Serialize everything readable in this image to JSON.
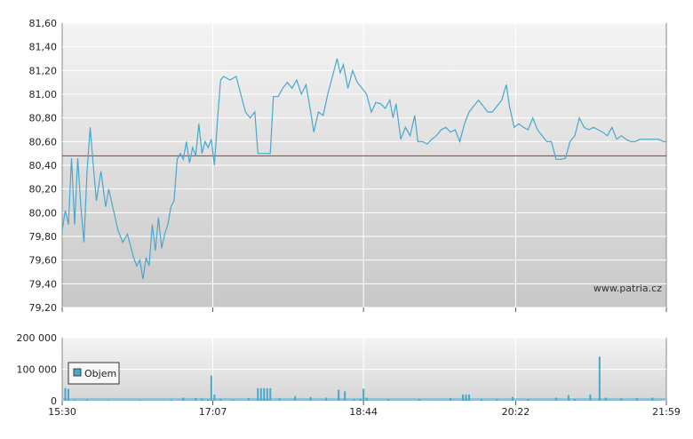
{
  "watermark": "www.patria.cz",
  "chart_data": [
    {
      "type": "line",
      "x_ticks": [
        "15:30",
        "17:07",
        "18:44",
        "20:22",
        "21:59"
      ],
      "y_ticks": [
        "79,20",
        "79,40",
        "79,60",
        "79,80",
        "80,00",
        "80,20",
        "80,40",
        "80,60",
        "80,80",
        "81,00",
        "81,20",
        "81,40",
        "81,60"
      ],
      "ylim": [
        79.2,
        81.6
      ],
      "reference_line": 80.48,
      "colors": {
        "line": "#4aa7cc",
        "reference": "#cc2222"
      },
      "series": [
        {
          "points": [
            [
              "15:30",
              79.85
            ],
            [
              "15:32",
              80.02
            ],
            [
              "15:34",
              79.9
            ],
            [
              "15:36",
              80.46
            ],
            [
              "15:38",
              79.9
            ],
            [
              "15:40",
              80.46
            ],
            [
              "15:42",
              80.05
            ],
            [
              "15:44",
              79.75
            ],
            [
              "15:46",
              80.35
            ],
            [
              "15:48",
              80.72
            ],
            [
              "15:50",
              80.4
            ],
            [
              "15:52",
              80.1
            ],
            [
              "15:55",
              80.35
            ],
            [
              "15:58",
              80.05
            ],
            [
              "16:00",
              80.2
            ],
            [
              "16:03",
              80.02
            ],
            [
              "16:06",
              79.85
            ],
            [
              "16:09",
              79.75
            ],
            [
              "16:12",
              79.82
            ],
            [
              "16:14",
              79.72
            ],
            [
              "16:16",
              79.62
            ],
            [
              "16:18",
              79.55
            ],
            [
              "16:20",
              79.6
            ],
            [
              "16:22",
              79.44
            ],
            [
              "16:24",
              79.62
            ],
            [
              "16:26",
              79.55
            ],
            [
              "16:28",
              79.9
            ],
            [
              "16:30",
              79.68
            ],
            [
              "16:32",
              79.96
            ],
            [
              "16:34",
              79.7
            ],
            [
              "16:36",
              79.82
            ],
            [
              "16:38",
              79.9
            ],
            [
              "16:40",
              80.05
            ],
            [
              "16:42",
              80.1
            ],
            [
              "16:44",
              80.45
            ],
            [
              "16:46",
              80.5
            ],
            [
              "16:48",
              80.45
            ],
            [
              "16:50",
              80.6
            ],
            [
              "16:52",
              80.42
            ],
            [
              "16:54",
              80.55
            ],
            [
              "16:56",
              80.48
            ],
            [
              "16:58",
              80.75
            ],
            [
              "17:00",
              80.5
            ],
            [
              "17:02",
              80.6
            ],
            [
              "17:04",
              80.55
            ],
            [
              "17:06",
              80.62
            ],
            [
              "17:08",
              80.4
            ],
            [
              "17:10",
              80.78
            ],
            [
              "17:12",
              81.12
            ],
            [
              "17:14",
              81.15
            ],
            [
              "17:18",
              81.12
            ],
            [
              "17:22",
              81.15
            ],
            [
              "17:25",
              81.0
            ],
            [
              "17:28",
              80.85
            ],
            [
              "17:31",
              80.8
            ],
            [
              "17:34",
              80.85
            ],
            [
              "17:36",
              80.5
            ],
            [
              "17:40",
              80.5
            ],
            [
              "17:44",
              80.5
            ],
            [
              "17:46",
              80.98
            ],
            [
              "17:49",
              80.98
            ],
            [
              "17:52",
              81.05
            ],
            [
              "17:55",
              81.1
            ],
            [
              "17:58",
              81.05
            ],
            [
              "18:01",
              81.12
            ],
            [
              "18:04",
              81.0
            ],
            [
              "18:07",
              81.08
            ],
            [
              "18:10",
              80.85
            ],
            [
              "18:12",
              80.68
            ],
            [
              "18:15",
              80.85
            ],
            [
              "18:18",
              80.82
            ],
            [
              "18:21",
              81.0
            ],
            [
              "18:24",
              81.15
            ],
            [
              "18:27",
              81.3
            ],
            [
              "18:29",
              81.18
            ],
            [
              "18:31",
              81.25
            ],
            [
              "18:34",
              81.05
            ],
            [
              "18:37",
              81.2
            ],
            [
              "18:40",
              81.1
            ],
            [
              "18:43",
              81.05
            ],
            [
              "18:46",
              81.0
            ],
            [
              "18:49",
              80.85
            ],
            [
              "18:52",
              80.93
            ],
            [
              "18:55",
              80.92
            ],
            [
              "18:58",
              80.88
            ],
            [
              "19:01",
              80.95
            ],
            [
              "19:03",
              80.8
            ],
            [
              "19:05",
              80.92
            ],
            [
              "19:08",
              80.62
            ],
            [
              "19:11",
              80.72
            ],
            [
              "19:14",
              80.65
            ],
            [
              "19:17",
              80.82
            ],
            [
              "19:19",
              80.6
            ],
            [
              "19:22",
              80.6
            ],
            [
              "19:25",
              80.58
            ],
            [
              "19:28",
              80.62
            ],
            [
              "19:31",
              80.65
            ],
            [
              "19:34",
              80.7
            ],
            [
              "19:37",
              80.72
            ],
            [
              "19:40",
              80.68
            ],
            [
              "19:43",
              80.7
            ],
            [
              "19:46",
              80.6
            ],
            [
              "19:49",
              80.75
            ],
            [
              "19:52",
              80.85
            ],
            [
              "19:55",
              80.9
            ],
            [
              "19:58",
              80.95
            ],
            [
              "20:01",
              80.9
            ],
            [
              "20:04",
              80.85
            ],
            [
              "20:07",
              80.85
            ],
            [
              "20:10",
              80.9
            ],
            [
              "20:13",
              80.95
            ],
            [
              "20:16",
              81.08
            ],
            [
              "20:18",
              80.9
            ],
            [
              "20:21",
              80.72
            ],
            [
              "20:24",
              80.75
            ],
            [
              "20:27",
              80.72
            ],
            [
              "20:30",
              80.7
            ],
            [
              "20:33",
              80.8
            ],
            [
              "20:36",
              80.7
            ],
            [
              "20:39",
              80.65
            ],
            [
              "20:42",
              80.6
            ],
            [
              "20:45",
              80.6
            ],
            [
              "20:48",
              80.45
            ],
            [
              "20:51",
              80.45
            ],
            [
              "20:54",
              80.46
            ],
            [
              "20:57",
              80.6
            ],
            [
              "21:00",
              80.65
            ],
            [
              "21:03",
              80.8
            ],
            [
              "21:06",
              80.72
            ],
            [
              "21:09",
              80.7
            ],
            [
              "21:12",
              80.72
            ],
            [
              "21:15",
              80.7
            ],
            [
              "21:18",
              80.68
            ],
            [
              "21:21",
              80.65
            ],
            [
              "21:24",
              80.72
            ],
            [
              "21:27",
              80.62
            ],
            [
              "21:30",
              80.65
            ],
            [
              "21:33",
              80.62
            ],
            [
              "21:36",
              80.6
            ],
            [
              "21:39",
              80.6
            ],
            [
              "21:42",
              80.62
            ],
            [
              "21:45",
              80.62
            ],
            [
              "21:48",
              80.62
            ],
            [
              "21:51",
              80.62
            ],
            [
              "21:54",
              80.62
            ],
            [
              "21:57",
              80.6
            ],
            [
              "21:59",
              80.6
            ]
          ]
        }
      ]
    },
    {
      "type": "bar",
      "y_ticks": [
        "0",
        "100 000",
        "200 000"
      ],
      "ylim": [
        0,
        200000
      ],
      "legend": "Objem",
      "legend_position": "left",
      "colors": {
        "bar": "#4aa7cc"
      },
      "series": [
        {
          "name": "Objem",
          "bars": [
            [
              "15:32",
              40000
            ],
            [
              "15:34",
              38000
            ],
            [
              "15:38",
              3000
            ],
            [
              "15:46",
              4000
            ],
            [
              "16:00",
              2000
            ],
            [
              "16:20",
              2500
            ],
            [
              "16:40",
              3000
            ],
            [
              "16:48",
              10000
            ],
            [
              "16:56",
              9000
            ],
            [
              "17:00",
              7000
            ],
            [
              "17:04",
              5000
            ],
            [
              "17:06",
              80000
            ],
            [
              "17:08",
              20000
            ],
            [
              "17:12",
              6000
            ],
            [
              "17:20",
              4000
            ],
            [
              "17:30",
              9000
            ],
            [
              "17:36",
              40000
            ],
            [
              "17:38",
              40000
            ],
            [
              "17:40",
              40000
            ],
            [
              "17:42",
              40000
            ],
            [
              "17:44",
              40000
            ],
            [
              "17:50",
              8000
            ],
            [
              "18:00",
              15000
            ],
            [
              "18:10",
              12000
            ],
            [
              "18:20",
              10000
            ],
            [
              "18:28",
              35000
            ],
            [
              "18:32",
              30000
            ],
            [
              "18:38",
              6000
            ],
            [
              "18:42",
              6000
            ],
            [
              "18:44",
              38000
            ],
            [
              "18:46",
              10000
            ],
            [
              "19:00",
              6000
            ],
            [
              "19:20",
              5000
            ],
            [
              "19:40",
              9000
            ],
            [
              "19:48",
              20000
            ],
            [
              "19:50",
              20000
            ],
            [
              "19:52",
              20000
            ],
            [
              "20:00",
              5000
            ],
            [
              "20:10",
              5000
            ],
            [
              "20:20",
              12000
            ],
            [
              "20:30",
              6000
            ],
            [
              "20:48",
              10000
            ],
            [
              "20:56",
              18000
            ],
            [
              "21:00",
              6000
            ],
            [
              "21:10",
              20000
            ],
            [
              "21:16",
              140000
            ],
            [
              "21:20",
              10000
            ],
            [
              "21:30",
              8000
            ],
            [
              "21:40",
              9000
            ],
            [
              "21:50",
              10000
            ]
          ],
          "baseline_level": 8000
        }
      ]
    }
  ]
}
